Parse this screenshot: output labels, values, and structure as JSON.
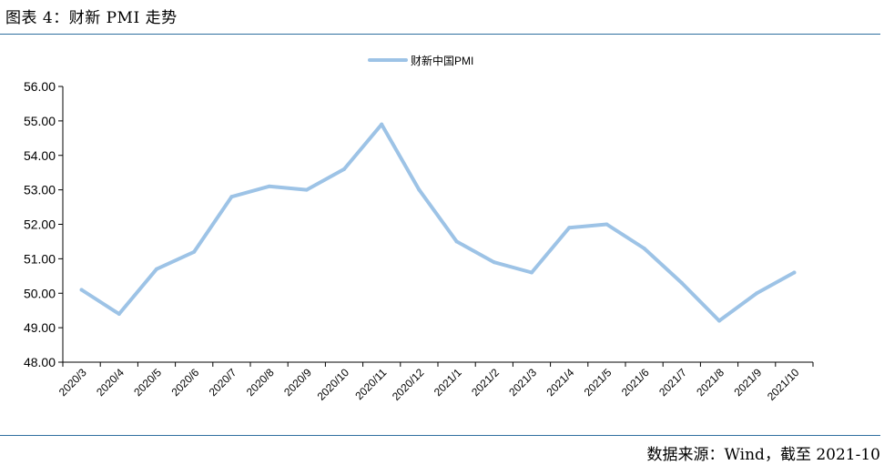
{
  "figure_title": "图表 4：财新 PMI 走势",
  "source": {
    "label": "数据来源：",
    "text": "Wind，截至 2021-10"
  },
  "colors": {
    "line": "#9dc3e6",
    "rule": "#2f6f9f",
    "axis": "#000000"
  },
  "chart_data": {
    "type": "line",
    "title": "",
    "xlabel": "",
    "ylabel": "",
    "legend_position": "top-center",
    "grid": false,
    "ylim": [
      48.0,
      56.0
    ],
    "yticks": [
      "48.00",
      "49.00",
      "50.00",
      "51.00",
      "52.00",
      "53.00",
      "54.00",
      "55.00",
      "56.00"
    ],
    "categories": [
      "2020/3",
      "2020/4",
      "2020/5",
      "2020/6",
      "2020/7",
      "2020/8",
      "2020/9",
      "2020/10",
      "2020/11",
      "2020/12",
      "2021/1",
      "2021/2",
      "2021/3",
      "2021/4",
      "2021/5",
      "2021/6",
      "2021/7",
      "2021/8",
      "2021/9",
      "2021/10"
    ],
    "series": [
      {
        "name": "财新中国PMI",
        "values": [
          50.1,
          49.4,
          50.7,
          51.2,
          52.8,
          53.1,
          53.0,
          53.6,
          54.9,
          53.0,
          51.5,
          50.9,
          50.6,
          51.9,
          52.0,
          51.3,
          50.3,
          49.2,
          50.0,
          50.6
        ]
      }
    ]
  }
}
